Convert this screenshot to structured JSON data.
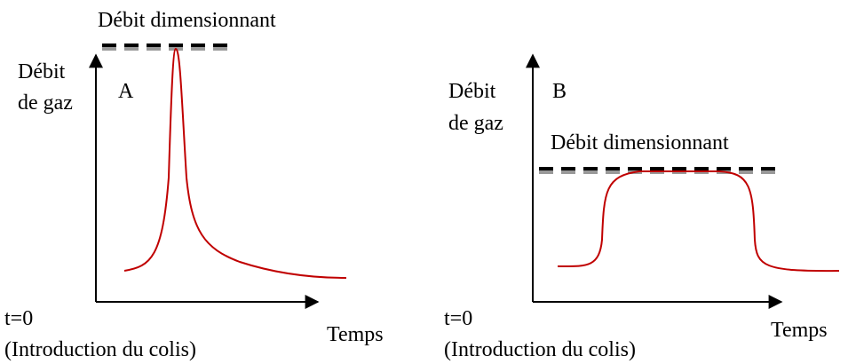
{
  "panels": [
    {
      "letter": "A",
      "y_label": [
        "Débit",
        "de gaz"
      ],
      "threshold": "Débit dimensionnant",
      "origin": "t=0",
      "origin_note": "(Introduction du colis)",
      "x_label": "Temps"
    },
    {
      "letter": "B",
      "y_label": [
        "Débit",
        "de gaz"
      ],
      "threshold": "Débit dimensionnant",
      "origin": "t=0",
      "origin_note": "(Introduction du colis)",
      "x_label": "Temps"
    }
  ]
}
